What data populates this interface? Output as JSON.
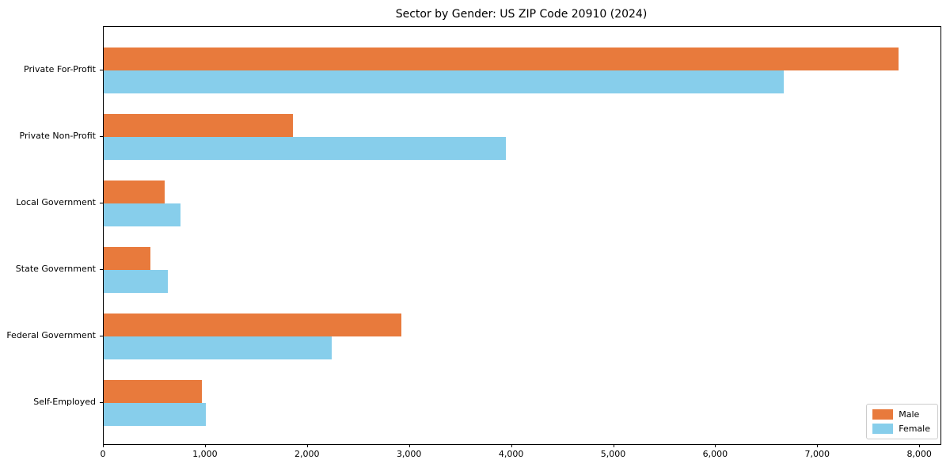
{
  "title": "Sector by Gender: US ZIP Code 20910 (2024)",
  "colors": {
    "male": "#e87a3c",
    "female": "#87ceeb",
    "axis": "#000000",
    "legend_border": "#cccccc",
    "background": "#ffffff"
  },
  "legend": {
    "position": "lower right",
    "items": [
      {
        "label": "Male",
        "color": "#e87a3c"
      },
      {
        "label": "Female",
        "color": "#87ceeb"
      }
    ]
  },
  "chart_data": {
    "type": "bar",
    "orientation": "horizontal",
    "title": "Sector by Gender: US ZIP Code 20910 (2024)",
    "xlabel": "",
    "ylabel": "",
    "categories": [
      "Private For-Profit",
      "Private Non-Profit",
      "Local Government",
      "State Government",
      "Federal Government",
      "Self-Employed"
    ],
    "series": [
      {
        "name": "Male",
        "color": "#e87a3c",
        "values": [
          7790,
          1850,
          600,
          460,
          2920,
          960
        ]
      },
      {
        "name": "Female",
        "color": "#87ceeb",
        "values": [
          6660,
          3940,
          750,
          630,
          2230,
          1000
        ]
      }
    ],
    "xlim": [
      0,
      8200
    ],
    "x_ticks": [
      0,
      1000,
      2000,
      3000,
      4000,
      5000,
      6000,
      7000,
      8000
    ],
    "x_tick_labels": [
      "0",
      "1,000",
      "2,000",
      "3,000",
      "4,000",
      "5,000",
      "6,000",
      "7,000",
      "8,000"
    ],
    "grid": false,
    "legend_position": "lower right"
  }
}
